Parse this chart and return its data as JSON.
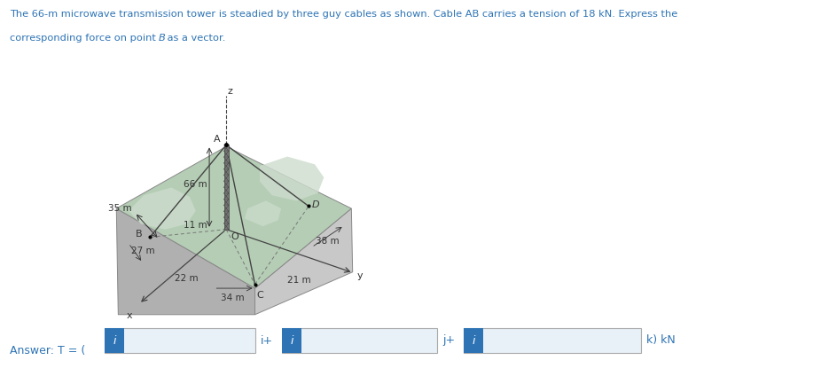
{
  "title_line1": "The 66-m microwave transmission tower is steadied by three guy cables as shown. Cable AB carries a tension of 18 kN. Express the",
  "title_line2": "corresponding force on point B as a vector.",
  "title_color": "#2e74b5",
  "answer_label": "Answer: T = ( ",
  "answer_color": "#2e74b5",
  "box_fill": "#5b9bd5",
  "box_icon_fill": "#2e74b5",
  "box_icon_text": "i",
  "box_icon_text_color": "white",
  "sep_i": "i+",
  "sep_j": "j+",
  "sep_k": "k) kN",
  "green_top": "#b5cdb5",
  "green_top2": "#c8dac8",
  "green_hill": "#cddccd",
  "gray_side1": "#b0b0b0",
  "gray_side2": "#c8c8c8",
  "line_color": "#444444",
  "tower_color": "#666666",
  "dashed_color": "#777777",
  "label_color": "#333333",
  "arrow_color": "#555555"
}
